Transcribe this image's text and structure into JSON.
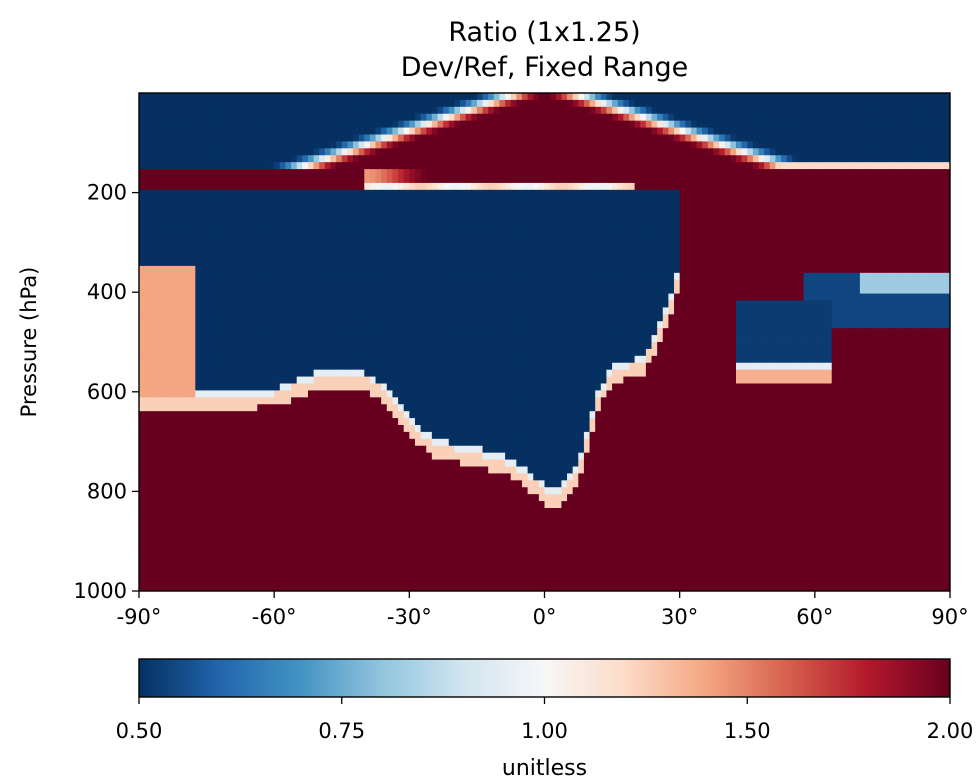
{
  "chart_data": {
    "type": "heatmap",
    "title": "Ratio (1x1.25)",
    "subtitle": "Dev/Ref, Fixed Range",
    "ylabel": "Pressure (hPa)",
    "x_range": [
      -90,
      90
    ],
    "y_range": [
      1000,
      0
    ],
    "x_ticks": [
      -90,
      -60,
      -30,
      0,
      30,
      60,
      90
    ],
    "x_tick_labels": [
      "-90°",
      "-60°",
      "-30°",
      "0°",
      "30°",
      "60°",
      "90°"
    ],
    "y_ticks": [
      200,
      400,
      600,
      800,
      1000
    ],
    "y_tick_labels": [
      "200",
      "400",
      "600",
      "800",
      "1000"
    ],
    "colorbar": {
      "label": "unitless",
      "min": 0.5,
      "max": 2.0,
      "ticks": [
        0.5,
        0.75,
        1.0,
        1.5,
        2.0
      ],
      "tick_labels": [
        "0.50",
        "0.75",
        "1.00",
        "1.50",
        "2.00"
      ],
      "colormap": "RdBu_r",
      "colors": [
        "#053061",
        "#2166ac",
        "#4393c3",
        "#92c5de",
        "#d1e5f0",
        "#f7f7f7",
        "#fddbc7",
        "#f4a582",
        "#d6604d",
        "#b2182b",
        "#67001f"
      ]
    },
    "regions": [
      {
        "description": "high ratio (>=2.0) lower troposphere",
        "value": 2.0,
        "lat": [
          -90,
          90
        ],
        "pressure": [
          610,
          1000
        ]
      },
      {
        "description": "low ratio (<=0.5) upper troposphere",
        "value": 0.5,
        "lat": [
          -90,
          30
        ],
        "pressure": [
          200,
          600
        ]
      },
      {
        "description": "low ratio (<=0.5) mid-latitude NH pocket",
        "value": 0.5,
        "lat": [
          43,
          65
        ],
        "pressure": [
          420,
          580
        ]
      },
      {
        "description": "high ratio band near tropopause",
        "value": 2.0,
        "lat": [
          -20,
          90
        ],
        "pressure": [
          150,
          200
        ]
      }
    ]
  }
}
